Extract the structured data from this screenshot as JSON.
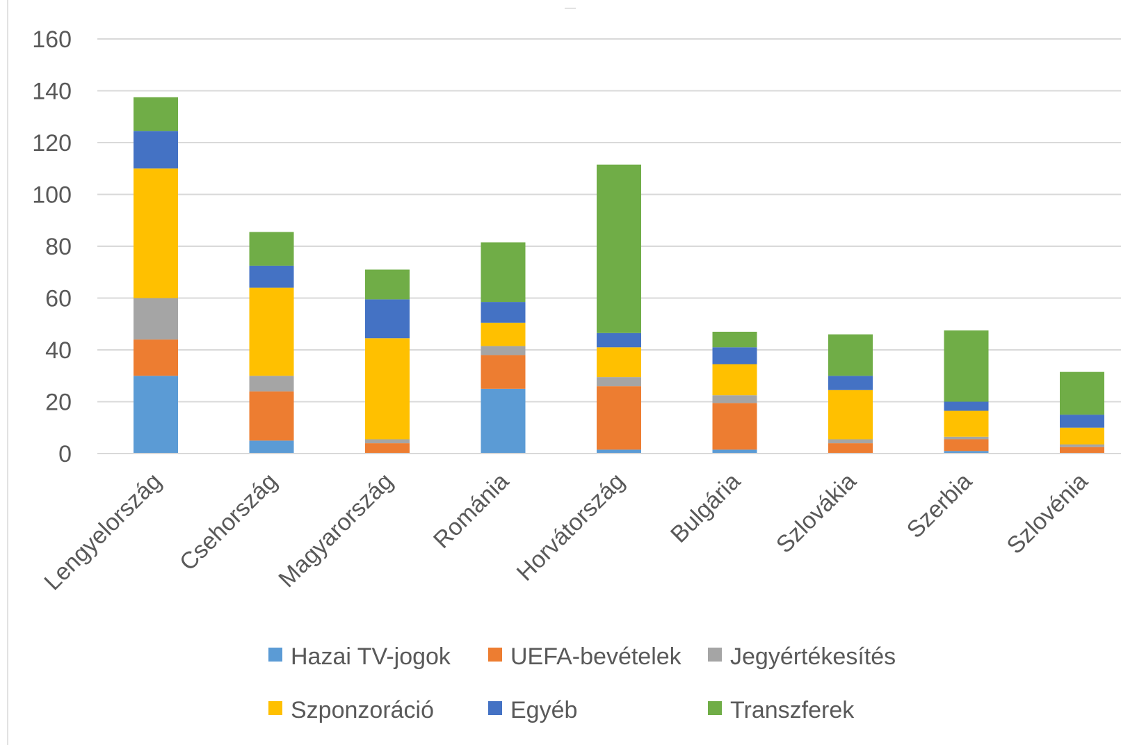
{
  "chart_data": {
    "type": "bar",
    "stacked": true,
    "title": "",
    "xlabel": "",
    "ylabel": "",
    "ylim": [
      0,
      160
    ],
    "yticks": [
      0,
      20,
      40,
      60,
      80,
      100,
      120,
      140,
      160
    ],
    "grid": true,
    "legend_position": "bottom",
    "categories": [
      "Lengyelország",
      "Csehország",
      "Magyarország",
      "Románia",
      "Horvátország",
      "Bulgária",
      "Szlovákia",
      "Szerbia",
      "Szlovénia"
    ],
    "series": [
      {
        "name": "Hazai TV-jogok",
        "color": "#5B9BD5",
        "values": [
          30,
          5,
          0,
          25,
          1.5,
          1.5,
          0,
          1,
          0
        ]
      },
      {
        "name": "UEFA-bevételek",
        "color": "#ED7D31",
        "values": [
          14,
          19,
          4,
          13,
          24.5,
          18,
          4,
          4.5,
          2.5
        ]
      },
      {
        "name": "Jegyértékesítés",
        "color": "#A5A5A5",
        "values": [
          16,
          6,
          1.5,
          3.5,
          3.5,
          3,
          1.5,
          1,
          1
        ]
      },
      {
        "name": "Szponzoráció",
        "color": "#FFC000",
        "values": [
          50,
          34,
          39,
          9,
          11.5,
          12,
          19,
          10,
          6.5
        ]
      },
      {
        "name": "Egyéb",
        "color": "#4472C4",
        "values": [
          14.5,
          8.5,
          15,
          8,
          5.5,
          6.5,
          5.5,
          3.5,
          5
        ]
      },
      {
        "name": "Transzferek",
        "color": "#70AD47",
        "values": [
          13,
          13,
          11.5,
          23,
          65,
          6,
          16,
          27.5,
          16.5
        ]
      }
    ]
  }
}
